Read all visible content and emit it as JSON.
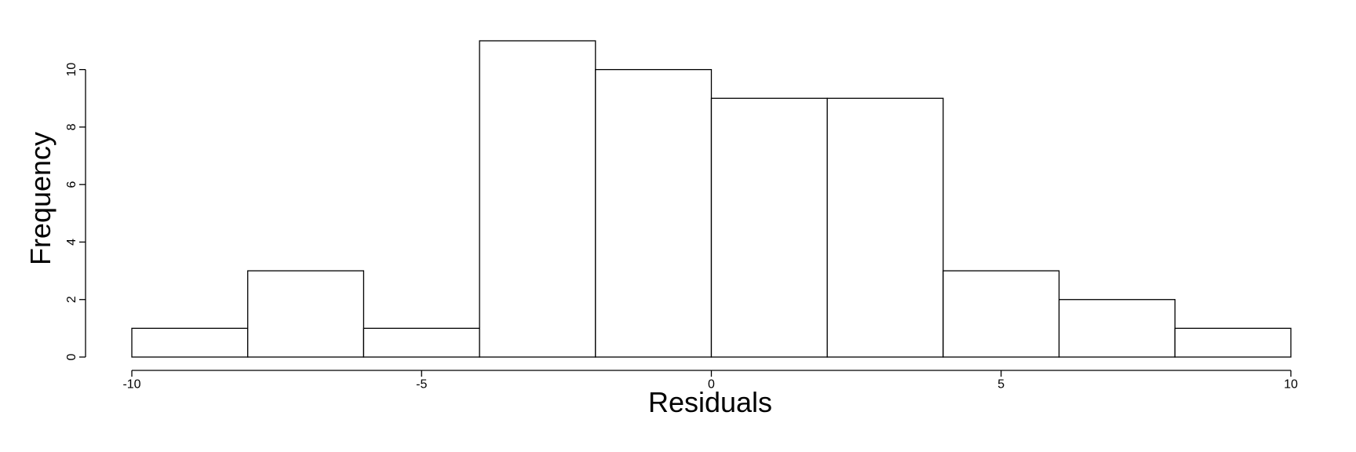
{
  "chart_data": {
    "type": "bar",
    "chart_kind": "histogram",
    "bins": [
      {
        "start": -10,
        "end": -8,
        "count": 1
      },
      {
        "start": -8,
        "end": -6,
        "count": 3
      },
      {
        "start": -6,
        "end": -4,
        "count": 1
      },
      {
        "start": -4,
        "end": -2,
        "count": 11
      },
      {
        "start": -2,
        "end": 0,
        "count": 10
      },
      {
        "start": 0,
        "end": 2,
        "count": 9
      },
      {
        "start": 2,
        "end": 4,
        "count": 9
      },
      {
        "start": 4,
        "end": 6,
        "count": 3
      },
      {
        "start": 6,
        "end": 8,
        "count": 2
      },
      {
        "start": 8,
        "end": 10,
        "count": 1
      }
    ],
    "xlabel": "Residuals",
    "ylabel": "Frequency",
    "xlim": [
      -10,
      10
    ],
    "ylim": [
      0,
      11
    ],
    "xticks": [
      -10,
      -5,
      0,
      5,
      10
    ],
    "xtick_labels": [
      "-10",
      "-5",
      "0",
      "5",
      "10"
    ],
    "yticks": [
      0,
      2,
      4,
      6,
      8,
      10
    ],
    "ytick_labels": [
      "0",
      "2",
      "4",
      "6",
      "8",
      "10"
    ],
    "grid": false,
    "colors": {
      "bar_fill": "#ffffff",
      "bar_stroke": "#000000",
      "axis": "#000000",
      "background": "#ffffff"
    }
  }
}
